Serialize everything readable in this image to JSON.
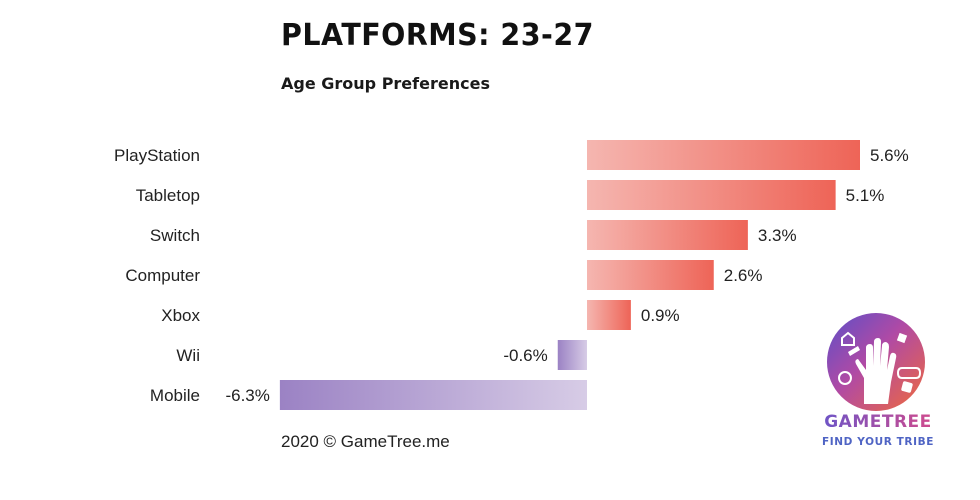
{
  "header": {
    "title": "PLATFORMS: 23-27",
    "subtitle": "Age Group Preferences"
  },
  "footer": {
    "note": "2020 © GameTree.me"
  },
  "logo": {
    "brand": "GAMETREE",
    "tagline": "FIND YOUR TRIBE"
  },
  "colors": {
    "positive_start": "#f5b6b0",
    "positive_end": "#ee6457",
    "negative_start": "#9b82c4",
    "negative_end": "#d7cce6"
  },
  "chart_data": {
    "type": "bar",
    "orientation": "horizontal",
    "title": "PLATFORMS: 23-27",
    "subtitle": "Age Group Preferences",
    "categories": [
      "PlayStation",
      "Tabletop",
      "Switch",
      "Computer",
      "Xbox",
      "Wii",
      "Mobile"
    ],
    "values": [
      5.6,
      5.1,
      3.3,
      2.6,
      0.9,
      -0.6,
      -6.3
    ],
    "value_labels": [
      "5.6%",
      "5.1%",
      "3.3%",
      "2.6%",
      "0.9%",
      "-0.6%",
      "-6.3%"
    ],
    "unit": "%",
    "xlim": [
      -6.3,
      5.6
    ],
    "grid": false,
    "legend": "none"
  }
}
